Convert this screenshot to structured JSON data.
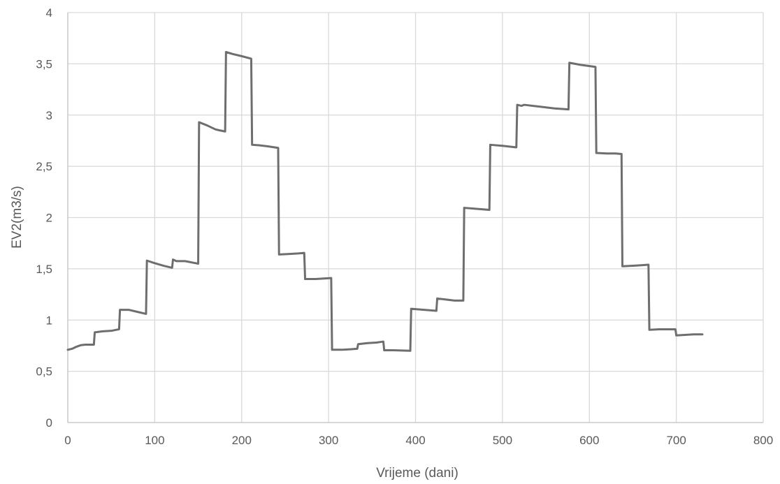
{
  "chart_data": {
    "type": "line",
    "xlabel": "Vrijeme (dani)",
    "ylabel": "EV2(m3/s)",
    "xlim": [
      0,
      800
    ],
    "ylim": [
      0,
      4
    ],
    "x_ticks": [
      0,
      100,
      200,
      300,
      400,
      500,
      600,
      700,
      800
    ],
    "x_tick_labels": [
      "0",
      "100",
      "200",
      "300",
      "400",
      "500",
      "600",
      "700",
      "800"
    ],
    "y_ticks": [
      0,
      0.5,
      1,
      1.5,
      2,
      2.5,
      3,
      3.5,
      4
    ],
    "y_tick_labels": [
      "0",
      "0,5",
      "1",
      "1,5",
      "2",
      "2,5",
      "3",
      "3,5",
      "4"
    ],
    "grid": "both",
    "legend": "none",
    "series_color": "#6e6e6e",
    "series": [
      {
        "points": [
          [
            0,
            0.71
          ],
          [
            5,
            0.72
          ],
          [
            10,
            0.74
          ],
          [
            15,
            0.755
          ],
          [
            20,
            0.76
          ],
          [
            30,
            0.76
          ],
          [
            31,
            0.88
          ],
          [
            40,
            0.89
          ],
          [
            50,
            0.895
          ],
          [
            59,
            0.91
          ],
          [
            60,
            1.1
          ],
          [
            70,
            1.1
          ],
          [
            80,
            1.08
          ],
          [
            90,
            1.06
          ],
          [
            91,
            1.58
          ],
          [
            100,
            1.555
          ],
          [
            110,
            1.53
          ],
          [
            120,
            1.51
          ],
          [
            121,
            1.59
          ],
          [
            125,
            1.575
          ],
          [
            135,
            1.575
          ],
          [
            150,
            1.55
          ],
          [
            151,
            2.93
          ],
          [
            160,
            2.9
          ],
          [
            170,
            2.86
          ],
          [
            175,
            2.85
          ],
          [
            181,
            2.84
          ],
          [
            182,
            3.615
          ],
          [
            190,
            3.595
          ],
          [
            200,
            3.575
          ],
          [
            211,
            3.55
          ],
          [
            212,
            2.71
          ],
          [
            220,
            2.705
          ],
          [
            230,
            2.695
          ],
          [
            242,
            2.68
          ],
          [
            243,
            1.64
          ],
          [
            255,
            1.645
          ],
          [
            265,
            1.65
          ],
          [
            272,
            1.655
          ],
          [
            273,
            1.4
          ],
          [
            285,
            1.4
          ],
          [
            303,
            1.41
          ],
          [
            304,
            0.71
          ],
          [
            315,
            0.71
          ],
          [
            325,
            0.715
          ],
          [
            333,
            0.72
          ],
          [
            334,
            0.765
          ],
          [
            345,
            0.775
          ],
          [
            355,
            0.78
          ],
          [
            363,
            0.79
          ],
          [
            364,
            0.705
          ],
          [
            375,
            0.705
          ],
          [
            394,
            0.7
          ],
          [
            395,
            1.11
          ],
          [
            410,
            1.1
          ],
          [
            424,
            1.09
          ],
          [
            425,
            1.21
          ],
          [
            435,
            1.2
          ],
          [
            445,
            1.19
          ],
          [
            455,
            1.19
          ],
          [
            456,
            2.095
          ],
          [
            470,
            2.085
          ],
          [
            485,
            2.075
          ],
          [
            486,
            2.71
          ],
          [
            500,
            2.7
          ],
          [
            516,
            2.685
          ],
          [
            517,
            3.1
          ],
          [
            522,
            3.09
          ],
          [
            525,
            3.1
          ],
          [
            545,
            3.08
          ],
          [
            560,
            3.065
          ],
          [
            576,
            3.055
          ],
          [
            577,
            3.51
          ],
          [
            590,
            3.49
          ],
          [
            607,
            3.47
          ],
          [
            608,
            2.63
          ],
          [
            620,
            2.625
          ],
          [
            630,
            2.625
          ],
          [
            637,
            2.62
          ],
          [
            638,
            1.525
          ],
          [
            650,
            1.53
          ],
          [
            660,
            1.535
          ],
          [
            668,
            1.54
          ],
          [
            669,
            0.905
          ],
          [
            680,
            0.91
          ],
          [
            699,
            0.91
          ],
          [
            700,
            0.85
          ],
          [
            710,
            0.855
          ],
          [
            720,
            0.86
          ],
          [
            730,
            0.86
          ]
        ]
      }
    ]
  }
}
